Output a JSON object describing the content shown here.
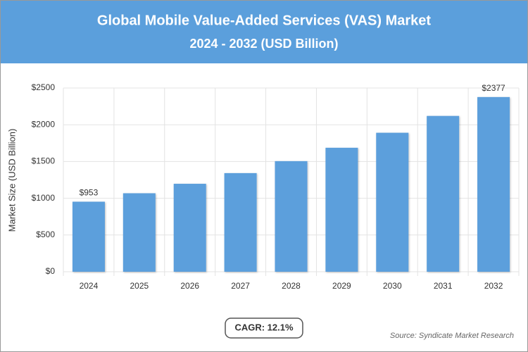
{
  "chart_data": {
    "type": "bar",
    "title": "Global Mobile Value-Added Services (VAS) Market",
    "subtitle": "2024 - 2032 (USD Billion)",
    "y_label": "Market Size (USD Billion)",
    "categories": [
      "2024",
      "2025",
      "2026",
      "2027",
      "2028",
      "2029",
      "2030",
      "2031",
      "2032"
    ],
    "values": [
      953,
      1068,
      1197,
      1342,
      1505,
      1687,
      1891,
      2120,
      2377
    ],
    "value_labels": [
      "$953",
      null,
      null,
      null,
      null,
      null,
      null,
      null,
      "$2377"
    ],
    "color": "#5b9fdc",
    "ylim": [
      0,
      2500
    ],
    "yticks": [
      {
        "value": 0,
        "label": "$0"
      },
      {
        "value": 500,
        "label": "$500"
      },
      {
        "value": 1000,
        "label": "$1000"
      },
      {
        "value": 1500,
        "label": "$1500"
      },
      {
        "value": 2000,
        "label": "$2000"
      },
      {
        "value": 2500,
        "label": "$2500"
      }
    ],
    "grid": true,
    "cagr": "CAGR: 12.1%",
    "source": "Source: Syndicate Market Research"
  }
}
